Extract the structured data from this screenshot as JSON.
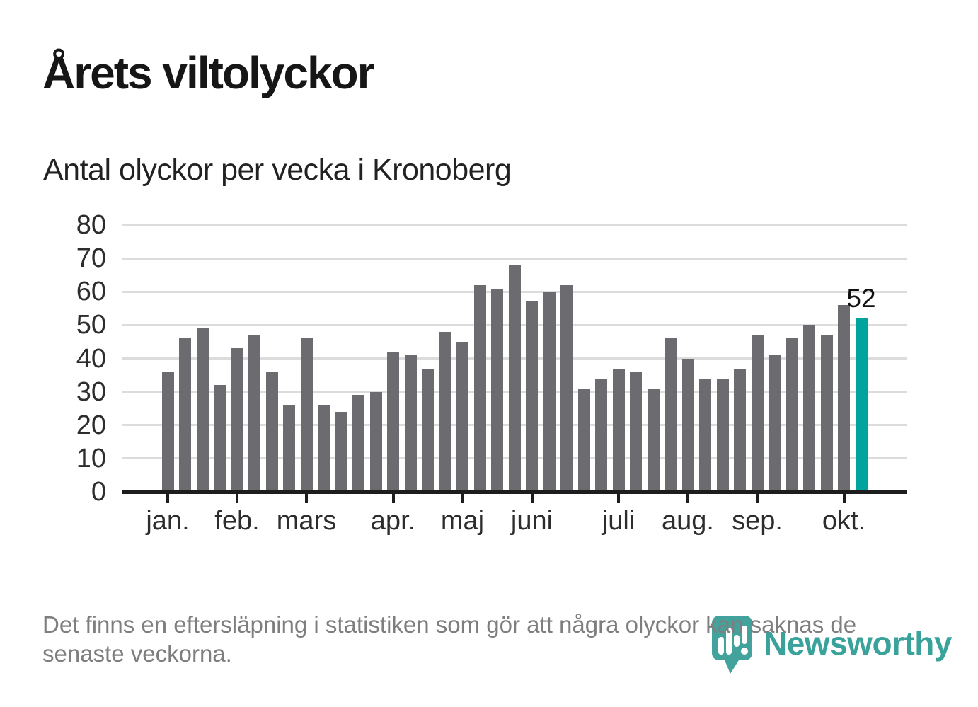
{
  "header": {
    "title": "Årets viltolyckor",
    "subtitle": "Antal olyckor per vecka i Kronoberg"
  },
  "chart_data": {
    "type": "bar",
    "title": "Årets viltolyckor",
    "subtitle": "Antal olyckor per vecka i Kronoberg",
    "x_unit": "vecka (week number)",
    "weeks": [
      1,
      2,
      3,
      4,
      5,
      6,
      7,
      8,
      9,
      10,
      11,
      12,
      13,
      14,
      15,
      16,
      17,
      18,
      19,
      20,
      21,
      22,
      23,
      24,
      25,
      26,
      27,
      28,
      29,
      30,
      31,
      32,
      33,
      34,
      35,
      36,
      37,
      38,
      39,
      40,
      41
    ],
    "values": [
      36,
      46,
      49,
      32,
      43,
      47,
      36,
      26,
      46,
      26,
      24,
      29,
      30,
      42,
      41,
      37,
      48,
      45,
      62,
      61,
      68,
      57,
      60,
      62,
      31,
      34,
      37,
      36,
      31,
      46,
      40,
      34,
      34,
      37,
      47,
      41,
      46,
      50,
      47,
      56,
      52
    ],
    "highlight_index": 40,
    "highlight_value": 52,
    "highlight_label": "52",
    "ylim": [
      0,
      80
    ],
    "yticks": [
      0,
      10,
      20,
      30,
      40,
      50,
      60,
      70,
      80
    ],
    "month_ticks": [
      {
        "label": "jan.",
        "week": 1
      },
      {
        "label": "feb.",
        "week": 5
      },
      {
        "label": "mars",
        "week": 9
      },
      {
        "label": "apr.",
        "week": 14
      },
      {
        "label": "maj",
        "week": 18
      },
      {
        "label": "juni",
        "week": 22
      },
      {
        "label": "juli",
        "week": 27
      },
      {
        "label": "aug.",
        "week": 31
      },
      {
        "label": "sep.",
        "week": 35
      },
      {
        "label": "okt.",
        "week": 40
      }
    ],
    "grid": true,
    "legend": "none",
    "colors": {
      "bar": "#6c6b70",
      "highlight": "#00a49d"
    }
  },
  "footer": {
    "lines": [
      "Det finns en eftersläpning i statistiken som gör att några olyckor kan saknas de",
      "senaste veckorna."
    ]
  },
  "logo": {
    "name": "Newsworthy",
    "color": "#2f9e96"
  }
}
